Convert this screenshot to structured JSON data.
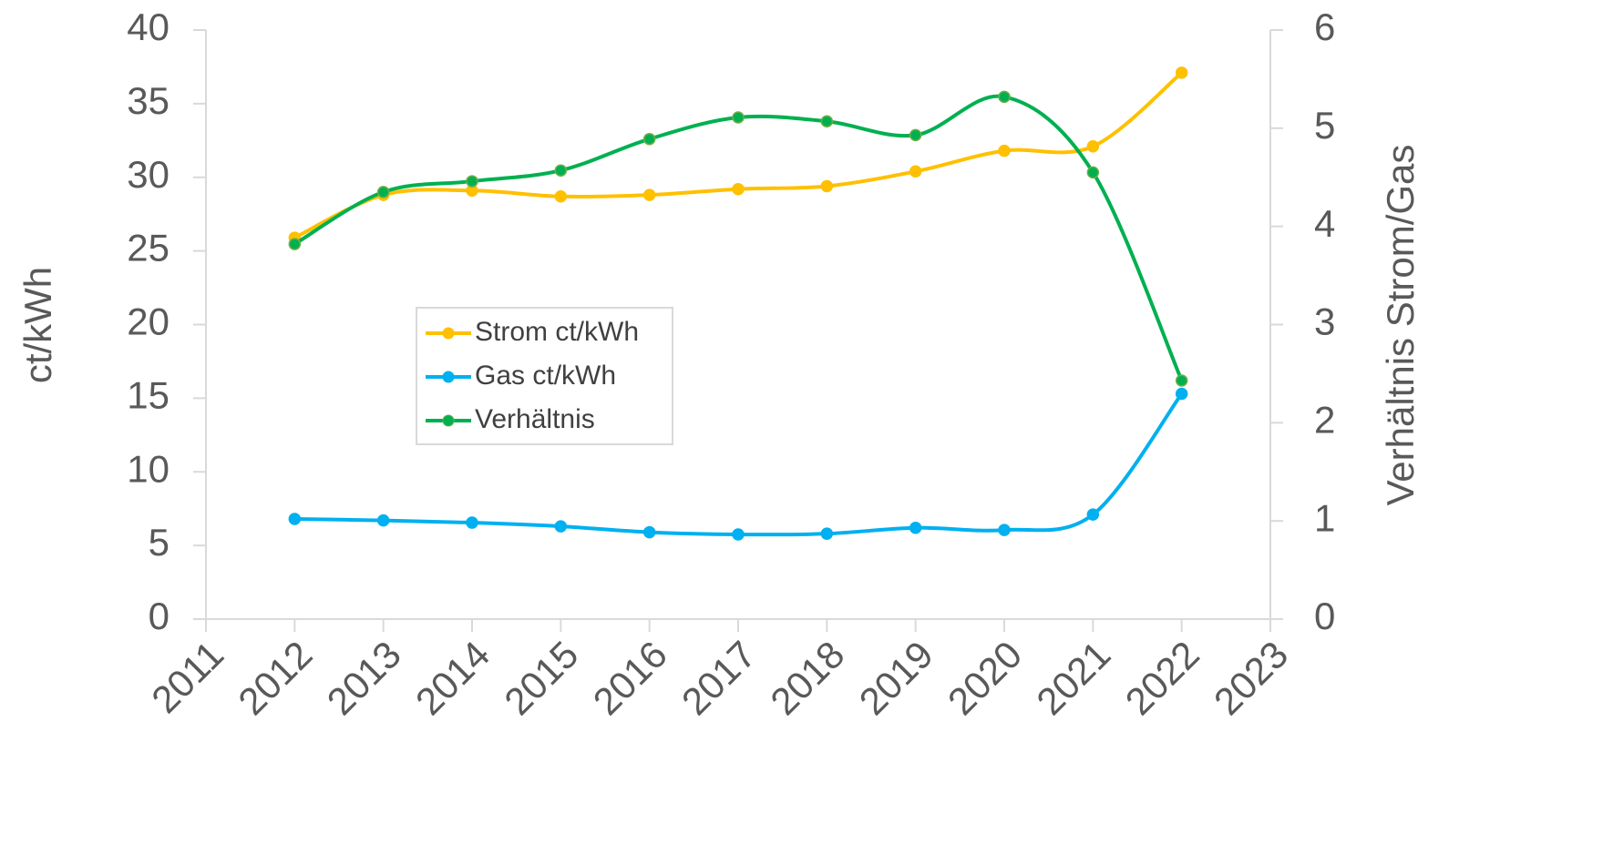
{
  "chart_data": {
    "type": "line",
    "x": [
      2012,
      2013,
      2014,
      2015,
      2016,
      2017,
      2018,
      2019,
      2020,
      2021,
      2022
    ],
    "xlim": [
      2011,
      2023
    ],
    "xticks": [
      2011,
      2012,
      2013,
      2014,
      2015,
      2016,
      2017,
      2018,
      2019,
      2020,
      2021,
      2022,
      2023
    ],
    "ylim": [
      0,
      40
    ],
    "yticks": [
      0,
      5,
      10,
      15,
      20,
      25,
      30,
      35,
      40
    ],
    "y2lim": [
      0,
      6
    ],
    "y2ticks": [
      0,
      1,
      2,
      3,
      4,
      5,
      6
    ],
    "ylabel": "ct/kWh",
    "y2label": "Verhältnis Strom/Gas",
    "smooth": true,
    "grid": false,
    "series": [
      {
        "name": "Strom ct/kWh",
        "color": "#ffc000",
        "values": [
          25.9,
          28.8,
          29.1,
          28.7,
          28.8,
          29.2,
          29.4,
          30.4,
          31.8,
          32.1,
          37.1
        ]
      },
      {
        "name": "Gas ct/kWh",
        "color": "#00b0f0",
        "values": [
          6.8,
          6.7,
          6.55,
          6.3,
          5.9,
          5.75,
          5.8,
          6.2,
          6.05,
          7.1,
          15.3
        ]
      },
      {
        "name": "Verhältnis",
        "color": "#00b050",
        "axis": "y2",
        "values": [
          3.82,
          4.35,
          4.46,
          4.57,
          4.89,
          5.11,
          5.07,
          4.93,
          5.32,
          4.55,
          2.43
        ]
      }
    ]
  }
}
